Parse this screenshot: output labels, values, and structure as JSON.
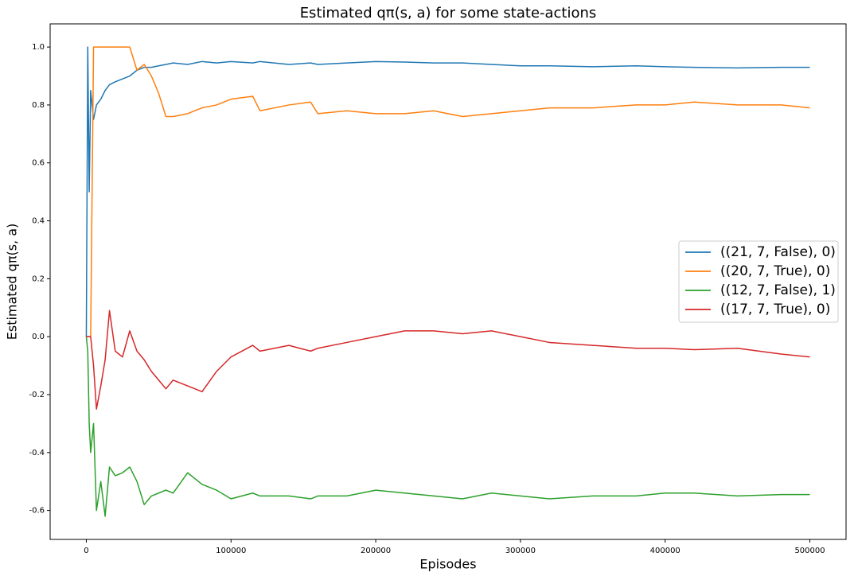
{
  "chart_data": {
    "type": "line",
    "title": "Estimated qπ(s, a) for some state-actions",
    "xlabel": "Episodes",
    "ylabel": "Estimated qπ(s, a)",
    "x": [
      0,
      1000,
      2000,
      3000,
      5000,
      7000,
      10000,
      13000,
      16000,
      20000,
      25000,
      30000,
      35000,
      40000,
      45000,
      50000,
      55000,
      60000,
      70000,
      80000,
      90000,
      100000,
      115000,
      120000,
      140000,
      155000,
      160000,
      180000,
      200000,
      220000,
      240000,
      260000,
      280000,
      300000,
      320000,
      350000,
      380000,
      400000,
      420000,
      450000,
      480000,
      500000
    ],
    "series": [
      {
        "name": "((21, 7, False), 0)",
        "color": "#1f77b4",
        "values": [
          0,
          1.0,
          0.5,
          0.85,
          0.75,
          0.8,
          0.82,
          0.85,
          0.87,
          0.88,
          0.89,
          0.9,
          0.92,
          0.93,
          0.93,
          0.935,
          0.94,
          0.945,
          0.94,
          0.95,
          0.945,
          0.95,
          0.945,
          0.95,
          0.94,
          0.945,
          0.94,
          0.945,
          0.95,
          0.948,
          0.945,
          0.945,
          0.94,
          0.935,
          0.935,
          0.932,
          0.935,
          0.932,
          0.93,
          0.928,
          0.93,
          0.93
        ]
      },
      {
        "name": "((20, 7, True), 0)",
        "color": "#ff7f0e",
        "values": [
          0,
          0,
          0,
          0,
          1.0,
          1.0,
          1.0,
          1.0,
          1.0,
          1.0,
          1.0,
          1.0,
          0.92,
          0.94,
          0.9,
          0.84,
          0.76,
          0.76,
          0.77,
          0.79,
          0.8,
          0.82,
          0.83,
          0.78,
          0.8,
          0.81,
          0.77,
          0.78,
          0.77,
          0.77,
          0.78,
          0.76,
          0.77,
          0.78,
          0.79,
          0.79,
          0.8,
          0.8,
          0.81,
          0.8,
          0.8,
          0.79
        ]
      },
      {
        "name": "((12, 7, False), 1)",
        "color": "#2ca02c",
        "values": [
          0,
          -0.05,
          -0.3,
          -0.4,
          -0.3,
          -0.6,
          -0.5,
          -0.62,
          -0.45,
          -0.48,
          -0.47,
          -0.45,
          -0.5,
          -0.58,
          -0.55,
          -0.54,
          -0.53,
          -0.54,
          -0.47,
          -0.51,
          -0.53,
          -0.56,
          -0.54,
          -0.55,
          -0.55,
          -0.56,
          -0.55,
          -0.55,
          -0.53,
          -0.54,
          -0.55,
          -0.56,
          -0.54,
          -0.55,
          -0.56,
          -0.55,
          -0.55,
          -0.54,
          -0.54,
          -0.55,
          -0.545,
          -0.545
        ]
      },
      {
        "name": "((17, 7, True), 0)",
        "color": "#d62728",
        "values": [
          0,
          0,
          0,
          0,
          -0.1,
          -0.25,
          -0.17,
          -0.08,
          0.09,
          -0.05,
          -0.07,
          0.02,
          -0.05,
          -0.08,
          -0.12,
          -0.15,
          -0.18,
          -0.15,
          -0.17,
          -0.19,
          -0.12,
          -0.07,
          -0.03,
          -0.05,
          -0.03,
          -0.05,
          -0.04,
          -0.02,
          0,
          0.02,
          0.02,
          0.01,
          0.02,
          0.0,
          -0.02,
          -0.03,
          -0.04,
          -0.04,
          -0.045,
          -0.04,
          -0.06,
          -0.07
        ]
      }
    ],
    "xlim": [
      -25000,
      525000
    ],
    "xticks": [
      0,
      100000,
      200000,
      300000,
      400000,
      500000
    ],
    "ylim": [
      -0.7,
      1.08
    ],
    "yticks": [
      -0.6,
      -0.4,
      -0.2,
      {
        "value": 0,
        "label": "0.0"
      },
      0.2,
      0.4,
      0.6,
      0.8,
      {
        "value": 1,
        "label": "1.0"
      }
    ],
    "grid": false,
    "legend": "center right"
  }
}
